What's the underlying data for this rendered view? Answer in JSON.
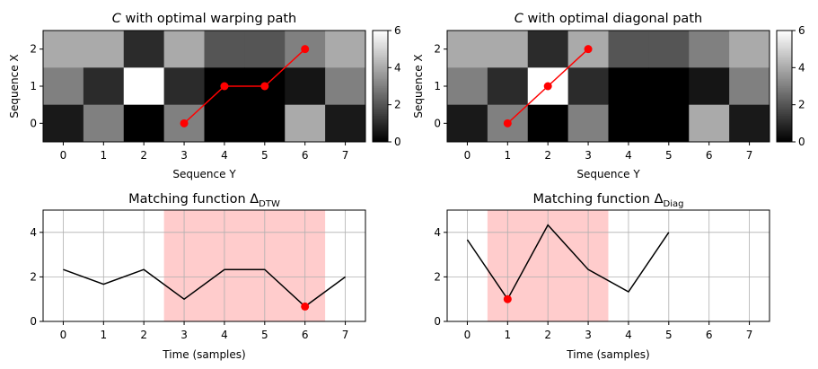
{
  "chart_data": [
    {
      "type": "heatmap",
      "title": "C with optimal warping path",
      "title_italic": "C",
      "title_rest": " with optimal warping path",
      "xlabel": "Sequence Y",
      "ylabel": "Sequence X",
      "x_ticks": [
        "0",
        "1",
        "2",
        "3",
        "4",
        "5",
        "6",
        "7"
      ],
      "y_ticks": [
        "0",
        "1",
        "2"
      ],
      "matrix": [
        [
          4,
          4,
          1,
          4,
          2,
          2,
          3,
          4
        ],
        [
          3,
          1,
          6,
          1,
          0,
          0,
          0.5,
          3
        ],
        [
          0.6,
          3,
          0,
          3,
          0,
          0,
          4,
          0.6
        ]
      ],
      "path": [
        [
          3,
          0
        ],
        [
          4,
          1
        ],
        [
          5,
          1
        ],
        [
          6,
          2
        ]
      ],
      "colorbar": {
        "min": 0,
        "max": 6,
        "ticks": [
          "0",
          "2",
          "4",
          "6"
        ]
      }
    },
    {
      "type": "heatmap",
      "title": "C with optimal diagonal path",
      "title_italic": "C",
      "title_rest": " with optimal diagonal path",
      "xlabel": "Sequence Y",
      "ylabel": "Sequence X",
      "x_ticks": [
        "0",
        "1",
        "2",
        "3",
        "4",
        "5",
        "6",
        "7"
      ],
      "y_ticks": [
        "0",
        "1",
        "2"
      ],
      "matrix": [
        [
          4,
          4,
          1,
          4,
          2,
          2,
          3,
          4
        ],
        [
          3,
          1,
          6,
          1,
          0,
          0,
          0.5,
          3
        ],
        [
          0.6,
          3,
          0,
          3,
          0,
          0,
          4,
          0.6
        ]
      ],
      "path": [
        [
          1,
          0
        ],
        [
          2,
          1
        ],
        [
          3,
          2
        ]
      ],
      "colorbar": {
        "min": 0,
        "max": 6,
        "ticks": [
          "0",
          "2",
          "4",
          "6"
        ]
      }
    },
    {
      "type": "line",
      "title_prefix": "Matching function Δ",
      "title_subscript": "DTW",
      "xlabel": "Time (samples)",
      "x_ticks": [
        "0",
        "1",
        "2",
        "3",
        "4",
        "5",
        "6",
        "7"
      ],
      "y_ticks": [
        "0",
        "2",
        "4"
      ],
      "xlim": [
        -0.5,
        7.5
      ],
      "ylim": [
        0,
        5
      ],
      "x": [
        0,
        1,
        2,
        3,
        4,
        5,
        6,
        7
      ],
      "values": [
        2.33,
        1.67,
        2.33,
        1.0,
        2.33,
        2.33,
        0.67,
        2.0
      ],
      "highlight_span": [
        2.5,
        6.5
      ],
      "min_point": {
        "x": 6,
        "y": 0.67
      }
    },
    {
      "type": "line",
      "title_prefix": "Matching function Δ",
      "title_subscript": "Diag",
      "xlabel": "Time (samples)",
      "x_ticks": [
        "0",
        "1",
        "2",
        "3",
        "4",
        "5",
        "6",
        "7"
      ],
      "y_ticks": [
        "0",
        "2",
        "4"
      ],
      "xlim": [
        -0.5,
        7.5
      ],
      "ylim": [
        0,
        5
      ],
      "x": [
        0,
        1,
        2,
        3,
        4,
        5
      ],
      "values": [
        3.67,
        1.0,
        4.33,
        2.33,
        1.33,
        4.0
      ],
      "highlight_span": [
        0.5,
        3.5
      ],
      "min_point": {
        "x": 1,
        "y": 1.0
      }
    }
  ]
}
